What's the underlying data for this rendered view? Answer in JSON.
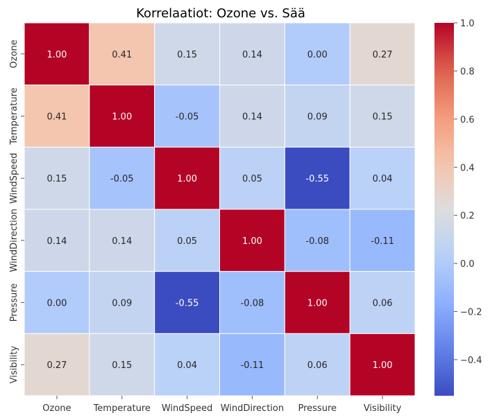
{
  "chart_data": {
    "type": "heatmap",
    "title": "Korrelaatiot: Ozone vs. Sää",
    "x_labels": [
      "Ozone",
      "Temperature",
      "WindSpeed",
      "WindDirection",
      "Pressure",
      "Visibility"
    ],
    "y_labels": [
      "Ozone",
      "Temperature",
      "WindSpeed",
      "WindDirection",
      "Pressure",
      "Visibility"
    ],
    "values": [
      [
        1.0,
        0.41,
        0.15,
        0.14,
        0.0,
        0.27
      ],
      [
        0.41,
        1.0,
        -0.05,
        0.14,
        0.09,
        0.15
      ],
      [
        0.15,
        -0.05,
        1.0,
        0.05,
        -0.55,
        0.04
      ],
      [
        0.14,
        0.14,
        0.05,
        1.0,
        -0.08,
        -0.11
      ],
      [
        0.0,
        0.09,
        -0.55,
        -0.08,
        1.0,
        0.06
      ],
      [
        0.27,
        0.15,
        0.04,
        -0.11,
        0.06,
        1.0
      ]
    ],
    "value_format": "0.00",
    "colormap": "coolwarm",
    "colorbar": {
      "vmin": -0.55,
      "vmax": 1.0,
      "ticks": [
        1.0,
        0.8,
        0.6,
        0.4,
        0.2,
        0.0,
        -0.2,
        -0.4
      ],
      "tick_labels": [
        "1.0",
        "0.8",
        "0.6",
        "0.4",
        "0.2",
        "0.0",
        "−0.2",
        "−0.4"
      ]
    },
    "grid": false,
    "cell_border_color": "#ffffff"
  }
}
